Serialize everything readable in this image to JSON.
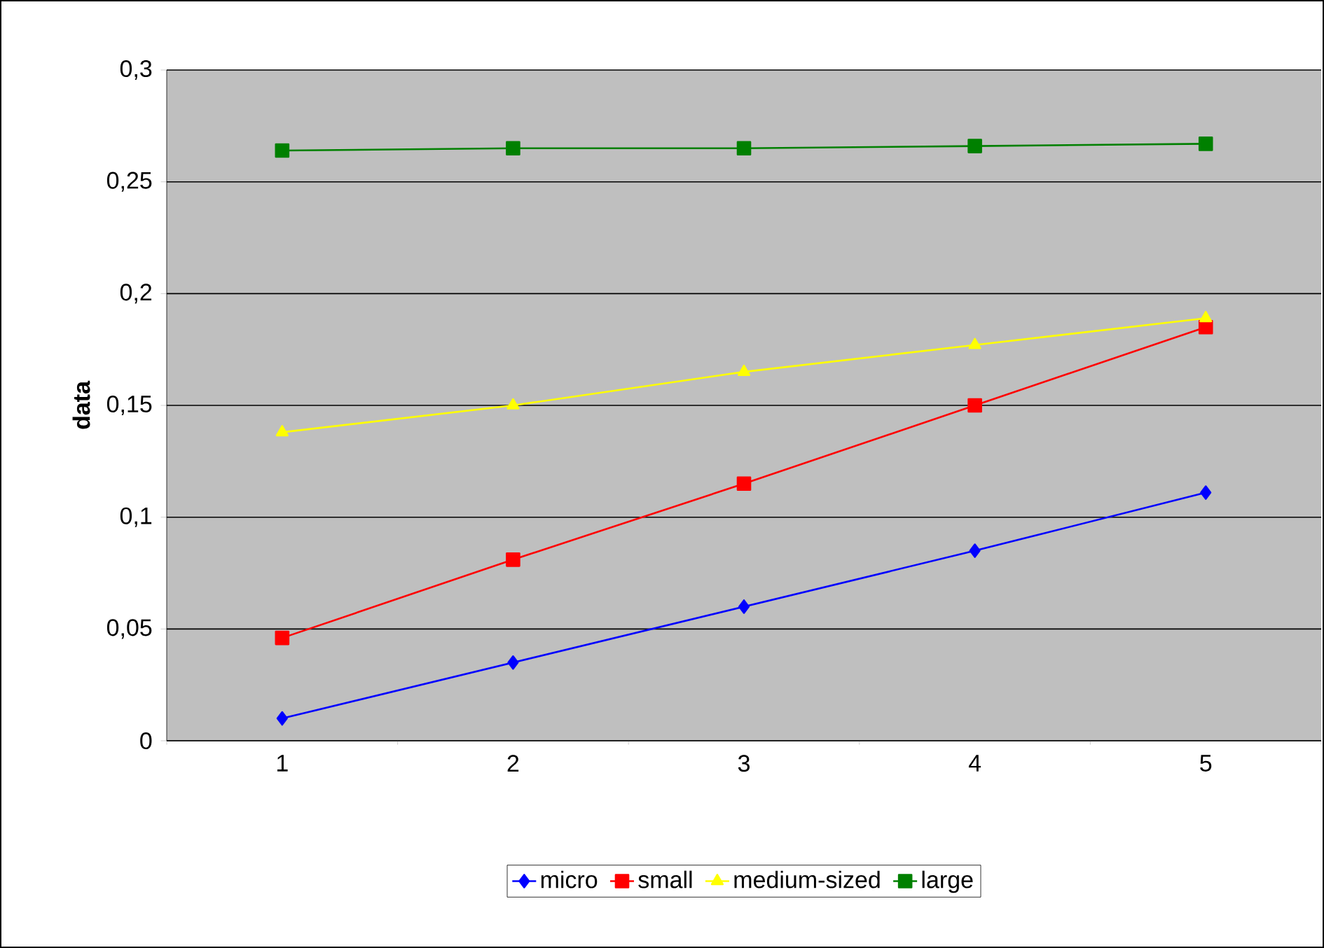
{
  "chart_data": {
    "type": "line",
    "ylabel": "data",
    "categories": [
      "1",
      "2",
      "3",
      "4",
      "5"
    ],
    "ylim": [
      0,
      0.3
    ],
    "yticks": [
      {
        "value": 0,
        "label": "0"
      },
      {
        "value": 0.05,
        "label": "0,05"
      },
      {
        "value": 0.1,
        "label": "0,1"
      },
      {
        "value": 0.15,
        "label": "0,15"
      },
      {
        "value": 0.2,
        "label": "0,2"
      },
      {
        "value": 0.25,
        "label": "0,25"
      },
      {
        "value": 0.3,
        "label": "0,3"
      }
    ],
    "series": [
      {
        "name": "micro",
        "color": "#0000ff",
        "marker": "diamond",
        "values": [
          0.01,
          0.035,
          0.06,
          0.085,
          0.111
        ]
      },
      {
        "name": "small",
        "color": "#ff0000",
        "marker": "square",
        "values": [
          0.046,
          0.081,
          0.115,
          0.15,
          0.185
        ]
      },
      {
        "name": "medium-sized",
        "color": "#ffff00",
        "marker": "triangle",
        "values": [
          0.138,
          0.15,
          0.165,
          0.177,
          0.189
        ]
      },
      {
        "name": "large",
        "color": "#008000",
        "marker": "square",
        "values": [
          0.264,
          0.265,
          0.265,
          0.266,
          0.267
        ]
      }
    ],
    "grid": "y",
    "legend": "bottom",
    "line_style": "solid"
  }
}
